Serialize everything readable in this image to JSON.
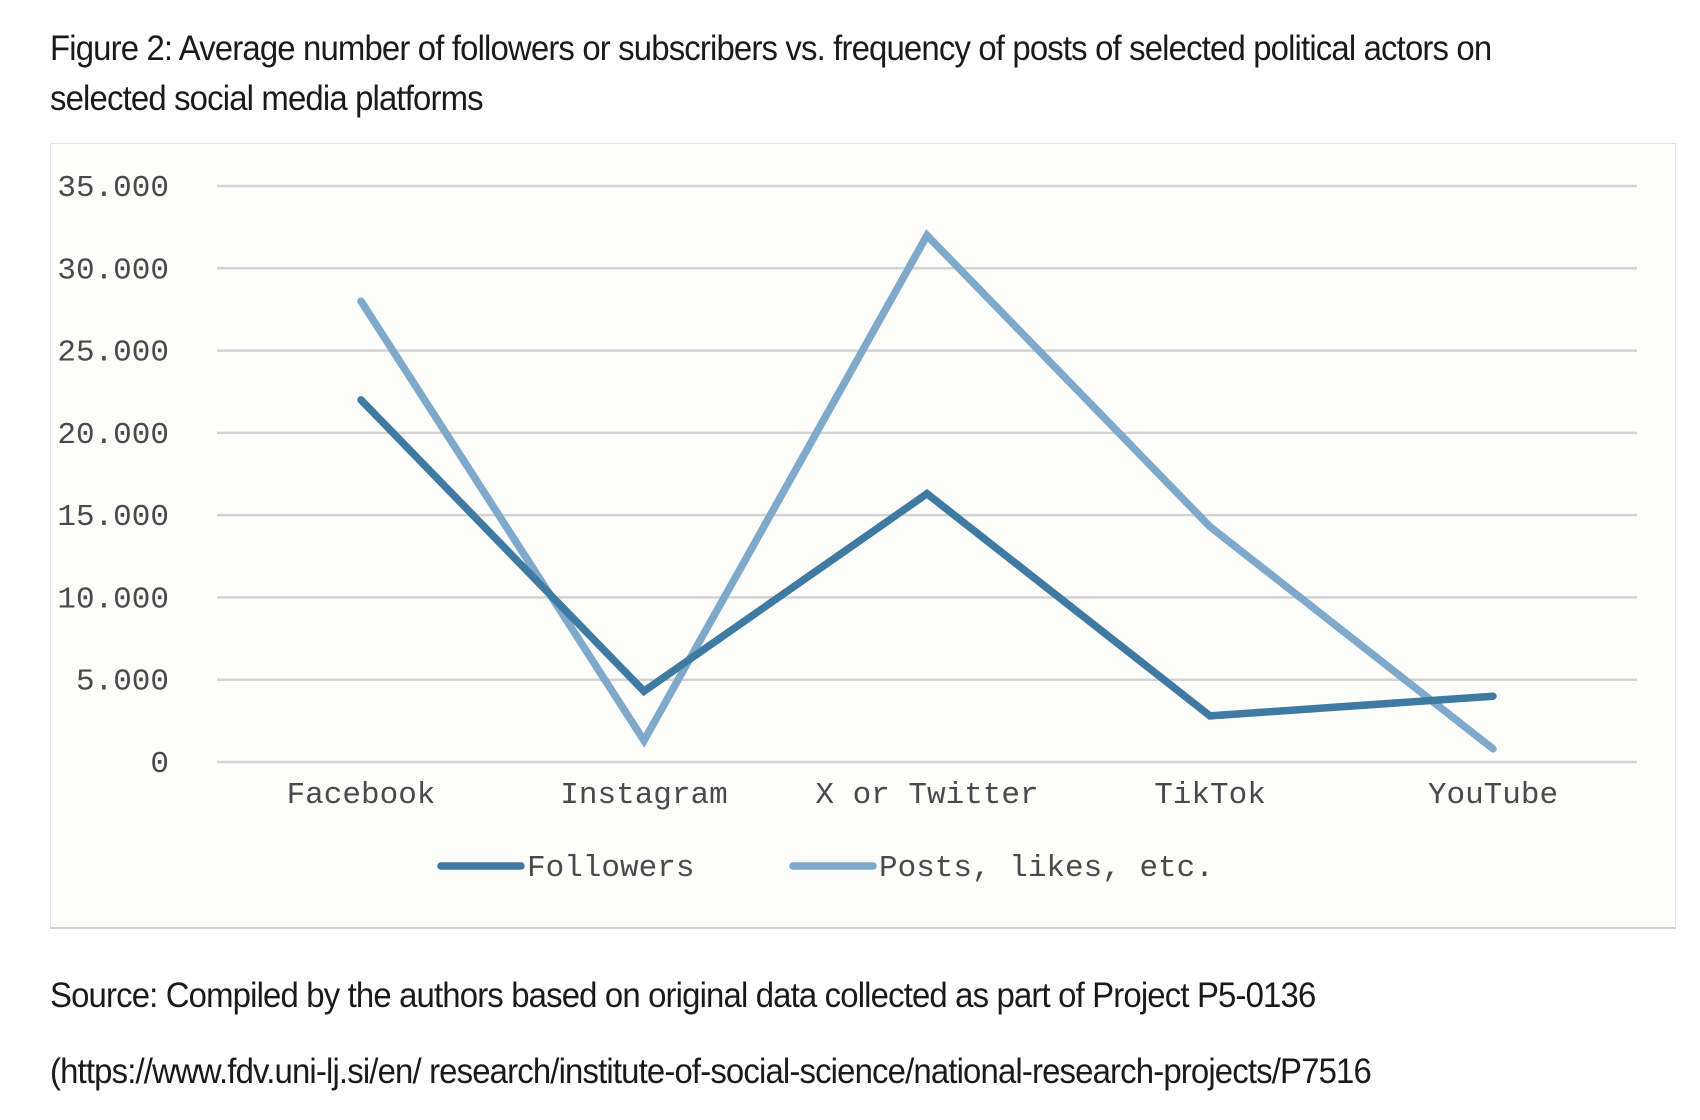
{
  "figure": {
    "title": "Figure 2: Average number of followers or subscribers vs. frequency of posts of selected political actors on selected social media platforms",
    "source": "Source: Compiled by the authors based on original data collected as part of Project P5-0136 (https://www.fdv.uni-lj.si/en/ research/institute-of-social-science/national-research-projects/P7516"
  },
  "chart_data": {
    "type": "line",
    "title": "",
    "xlabel": "",
    "ylabel": "",
    "categories": [
      "Facebook",
      "Instagram",
      "X or Twitter",
      "TikTok",
      "YouTube"
    ],
    "y_ticks": [
      "0",
      "5.000",
      "10.000",
      "15.000",
      "20.000",
      "25.000",
      "30.000",
      "35.000"
    ],
    "ylim": [
      0,
      35000
    ],
    "grid": true,
    "legend_position": "bottom",
    "series": [
      {
        "name": "Followers",
        "color": "#3e7aa1",
        "values": [
          22000,
          4300,
          16300,
          2800,
          4000
        ]
      },
      {
        "name": "Posts, likes, etc.",
        "color": "#7ea9cb",
        "values": [
          28000,
          1300,
          32000,
          14300,
          800
        ]
      }
    ]
  }
}
